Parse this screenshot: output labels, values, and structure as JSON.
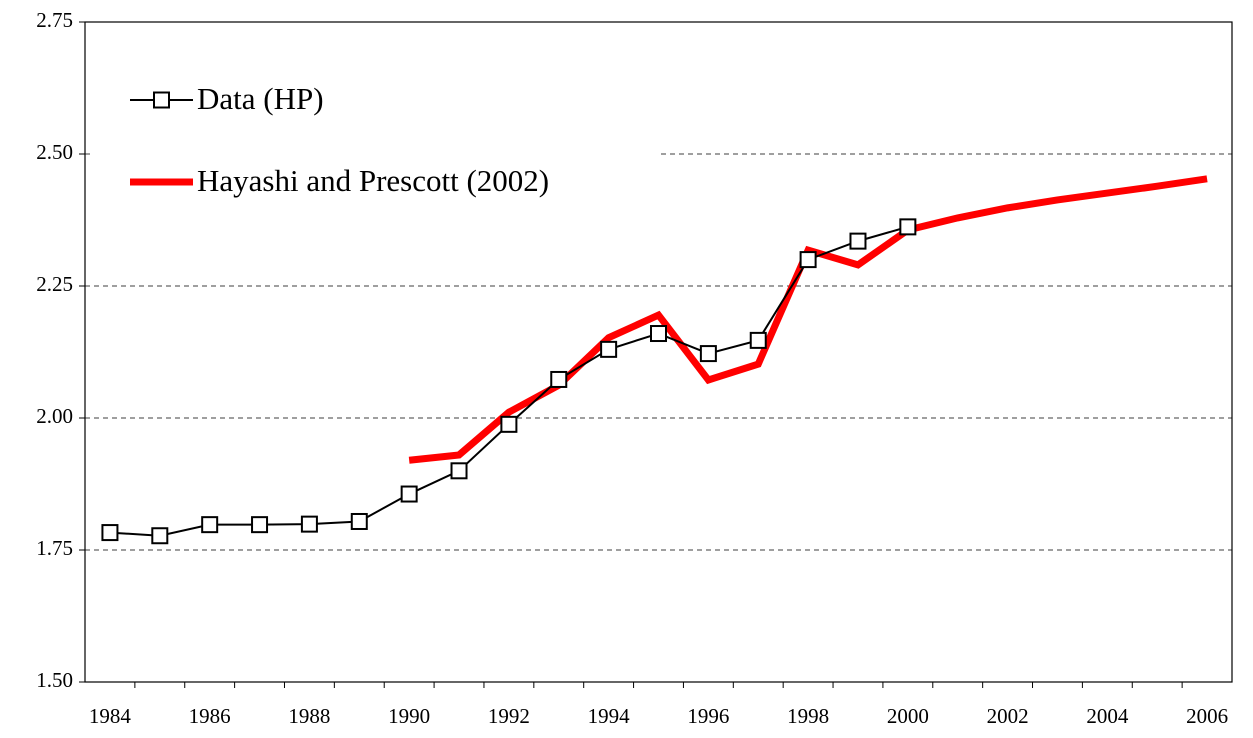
{
  "chart_data": {
    "type": "line",
    "categories": [
      "1984",
      null,
      "1986",
      null,
      "1988",
      null,
      "1990",
      null,
      "1992",
      null,
      "1994",
      null,
      "1996",
      null,
      "1998",
      null,
      "2000",
      null,
      "2002",
      null,
      "2004",
      null,
      "2006"
    ],
    "series": [
      {
        "name": "Data (HP)",
        "color": "#000000",
        "marker": "square",
        "values": [
          1.783,
          1.777,
          1.798,
          1.798,
          1.799,
          1.804,
          1.856,
          1.9,
          1.988,
          2.073,
          2.13,
          2.16,
          2.122,
          2.147,
          2.3,
          2.335,
          2.362,
          null,
          null,
          null,
          null,
          null,
          null
        ]
      },
      {
        "name": "Hayashi and Prescott (2002)",
        "color": "#ff0000",
        "values": [
          null,
          null,
          null,
          null,
          null,
          null,
          1.92,
          1.93,
          2.011,
          2.062,
          2.152,
          2.195,
          2.072,
          2.102,
          2.318,
          2.29,
          2.356,
          2.379,
          2.398,
          2.413,
          2.426,
          2.439,
          2.453
        ]
      }
    ],
    "ylim": [
      1.5,
      2.75
    ],
    "yticks": [
      {
        "value": 1.5,
        "label": "1.50"
      },
      {
        "value": 1.75,
        "label": "1.75"
      },
      {
        "value": 2.0,
        "label": "2.00"
      },
      {
        "value": 2.25,
        "label": "2.25"
      },
      {
        "value": 2.5,
        "label": "2.50"
      },
      {
        "value": 2.75,
        "label": "2.75"
      }
    ],
    "grid": true
  }
}
